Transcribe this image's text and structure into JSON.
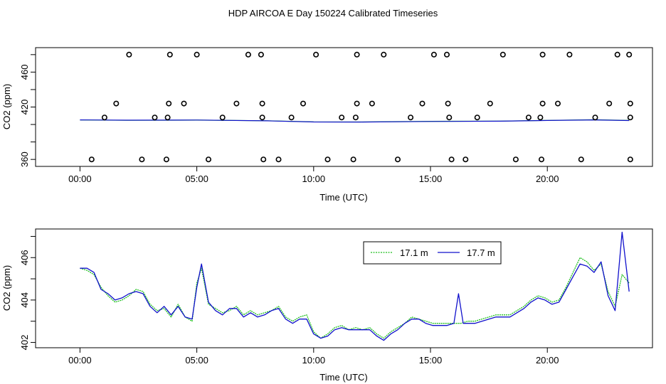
{
  "title": "HDP AIRCOA E  Day 150224  Calibrated Timeseries",
  "colors": {
    "green": "#1fbf1f",
    "blue": "#1010cc",
    "axis": "#000000"
  },
  "chart_data": [
    {
      "type": "scatter",
      "xlabel": "Time (UTC)",
      "ylabel": "CO2 (ppm)",
      "xlim": [
        -1.9,
        24.5
      ],
      "ylim": [
        352,
        488
      ],
      "xticks": [
        0,
        5,
        10,
        15,
        20
      ],
      "xtick_labels": [
        "00:00",
        "05:00",
        "10:00",
        "15:00",
        "20:00"
      ],
      "yticks": [
        360,
        380,
        400,
        420,
        440,
        460,
        480
      ],
      "ytick_labels": [
        "360",
        "",
        "",
        "420",
        "",
        "460",
        ""
      ],
      "calibration_points": {
        "high_480": [
          2.1,
          3.85,
          5.0,
          7.2,
          7.75,
          10.1,
          11.85,
          13.0,
          15.15,
          15.7,
          18.1,
          19.8,
          20.95,
          23.0,
          23.5
        ],
        "mid_424": [
          1.55,
          3.8,
          4.45,
          6.7,
          7.8,
          9.55,
          11.85,
          12.5,
          14.65,
          15.75,
          17.55,
          19.8,
          20.45,
          22.65,
          23.55
        ],
        "low_408": [
          1.05,
          3.2,
          3.75,
          6.1,
          7.8,
          9.05,
          11.2,
          11.8,
          14.15,
          15.8,
          17.0,
          19.2,
          19.7,
          22.05,
          23.55
        ],
        "std_360": [
          0.5,
          2.65,
          3.7,
          5.5,
          7.85,
          8.5,
          10.6,
          11.7,
          13.6,
          15.9,
          16.5,
          18.65,
          19.75,
          21.45,
          23.55
        ]
      },
      "series": [
        {
          "name": "17.1 m",
          "values": [
            [
              0,
              405.2
            ],
            [
              2,
              404.8
            ],
            [
              5,
              405.0
            ],
            [
              8,
              404.3
            ],
            [
              10,
              403.0
            ],
            [
              12,
              402.9
            ],
            [
              15,
              403.6
            ],
            [
              18,
              403.9
            ],
            [
              20,
              404.7
            ],
            [
              22,
              405.4
            ],
            [
              23.5,
              404.6
            ]
          ]
        },
        {
          "name": "17.7 m",
          "values": [
            [
              0,
              405.3
            ],
            [
              2,
              404.9
            ],
            [
              5,
              405.1
            ],
            [
              8,
              404.2
            ],
            [
              10,
              402.9
            ],
            [
              12,
              402.8
            ],
            [
              15,
              403.5
            ],
            [
              18,
              403.8
            ],
            [
              20,
              404.6
            ],
            [
              22,
              405.3
            ],
            [
              23.5,
              404.5
            ]
          ]
        }
      ]
    },
    {
      "type": "line",
      "xlabel": "Time (UTC)",
      "ylabel": "CO2 (ppm)",
      "xlim": [
        -1.9,
        24.5
      ],
      "ylim": [
        401.75,
        407.35
      ],
      "xticks": [
        0,
        5,
        10,
        15,
        20
      ],
      "xtick_labels": [
        "00:00",
        "05:00",
        "10:00",
        "15:00",
        "20:00"
      ],
      "yticks": [
        402,
        403,
        404,
        405,
        406,
        407
      ],
      "ytick_labels": [
        "402",
        "",
        "404",
        "",
        "406",
        ""
      ],
      "legend": {
        "position": "top-right",
        "entries": [
          "17.1 m",
          "17.7 m"
        ]
      },
      "series": [
        {
          "name": "17.1 m",
          "color": "#1fbf1f",
          "values": [
            [
              0.0,
              405.5
            ],
            [
              0.3,
              405.4
            ],
            [
              0.6,
              405.2
            ],
            [
              0.9,
              404.6
            ],
            [
              1.2,
              404.2
            ],
            [
              1.5,
              403.9
            ],
            [
              1.8,
              404.0
            ],
            [
              2.1,
              404.2
            ],
            [
              2.4,
              404.5
            ],
            [
              2.7,
              404.4
            ],
            [
              3.0,
              403.8
            ],
            [
              3.3,
              403.5
            ],
            [
              3.6,
              403.6
            ],
            [
              3.9,
              403.2
            ],
            [
              4.2,
              403.8
            ],
            [
              4.5,
              403.2
            ],
            [
              4.8,
              403.0
            ],
            [
              5.0,
              404.8
            ],
            [
              5.2,
              405.5
            ],
            [
              5.5,
              403.8
            ],
            [
              5.8,
              403.6
            ],
            [
              6.1,
              403.4
            ],
            [
              6.4,
              403.5
            ],
            [
              6.7,
              403.7
            ],
            [
              7.0,
              403.3
            ],
            [
              7.3,
              403.5
            ],
            [
              7.6,
              403.3
            ],
            [
              7.9,
              403.4
            ],
            [
              8.2,
              403.5
            ],
            [
              8.5,
              403.7
            ],
            [
              8.8,
              403.2
            ],
            [
              9.1,
              403.0
            ],
            [
              9.4,
              403.2
            ],
            [
              9.7,
              403.3
            ],
            [
              10.0,
              402.5
            ],
            [
              10.3,
              402.2
            ],
            [
              10.6,
              402.4
            ],
            [
              10.9,
              402.7
            ],
            [
              11.2,
              402.8
            ],
            [
              11.5,
              402.6
            ],
            [
              11.8,
              402.7
            ],
            [
              12.1,
              402.6
            ],
            [
              12.4,
              402.7
            ],
            [
              12.7,
              402.4
            ],
            [
              13.0,
              402.2
            ],
            [
              13.3,
              402.5
            ],
            [
              13.6,
              402.7
            ],
            [
              13.9,
              402.9
            ],
            [
              14.2,
              403.2
            ],
            [
              14.5,
              403.1
            ],
            [
              14.8,
              403.0
            ],
            [
              15.1,
              402.9
            ],
            [
              15.4,
              402.9
            ],
            [
              15.7,
              402.9
            ],
            [
              16.0,
              402.9
            ],
            [
              16.3,
              402.9
            ],
            [
              16.6,
              403.0
            ],
            [
              16.9,
              403.0
            ],
            [
              17.2,
              403.1
            ],
            [
              17.5,
              403.2
            ],
            [
              17.8,
              403.3
            ],
            [
              18.1,
              403.3
            ],
            [
              18.4,
              403.3
            ],
            [
              18.7,
              403.5
            ],
            [
              19.0,
              403.7
            ],
            [
              19.3,
              404.0
            ],
            [
              19.6,
              404.2
            ],
            [
              19.9,
              404.1
            ],
            [
              20.2,
              403.9
            ],
            [
              20.5,
              404.0
            ],
            [
              20.8,
              404.6
            ],
            [
              21.1,
              405.3
            ],
            [
              21.4,
              406.0
            ],
            [
              21.7,
              405.8
            ],
            [
              22.0,
              405.4
            ],
            [
              22.3,
              405.7
            ],
            [
              22.6,
              404.4
            ],
            [
              22.9,
              403.7
            ],
            [
              23.2,
              405.2
            ],
            [
              23.5,
              404.8
            ]
          ]
        },
        {
          "name": "17.7 m",
          "color": "#1010cc",
          "values": [
            [
              0.0,
              405.5
            ],
            [
              0.3,
              405.5
            ],
            [
              0.6,
              405.3
            ],
            [
              0.9,
              404.5
            ],
            [
              1.2,
              404.3
            ],
            [
              1.5,
              404.0
            ],
            [
              1.8,
              404.1
            ],
            [
              2.1,
              404.3
            ],
            [
              2.4,
              404.4
            ],
            [
              2.7,
              404.3
            ],
            [
              3.0,
              403.7
            ],
            [
              3.3,
              403.4
            ],
            [
              3.6,
              403.7
            ],
            [
              3.9,
              403.3
            ],
            [
              4.2,
              403.7
            ],
            [
              4.5,
              403.2
            ],
            [
              4.8,
              403.1
            ],
            [
              5.0,
              404.6
            ],
            [
              5.2,
              405.7
            ],
            [
              5.5,
              403.9
            ],
            [
              5.8,
              403.5
            ],
            [
              6.1,
              403.3
            ],
            [
              6.4,
              403.6
            ],
            [
              6.7,
              403.6
            ],
            [
              7.0,
              403.2
            ],
            [
              7.3,
              403.4
            ],
            [
              7.6,
              403.2
            ],
            [
              7.9,
              403.3
            ],
            [
              8.2,
              403.5
            ],
            [
              8.5,
              403.6
            ],
            [
              8.8,
              403.1
            ],
            [
              9.1,
              402.9
            ],
            [
              9.4,
              403.1
            ],
            [
              9.7,
              403.1
            ],
            [
              10.0,
              402.4
            ],
            [
              10.3,
              402.2
            ],
            [
              10.6,
              402.3
            ],
            [
              10.9,
              402.6
            ],
            [
              11.2,
              402.7
            ],
            [
              11.5,
              402.6
            ],
            [
              11.8,
              402.6
            ],
            [
              12.1,
              402.6
            ],
            [
              12.4,
              402.6
            ],
            [
              12.7,
              402.3
            ],
            [
              13.0,
              402.1
            ],
            [
              13.3,
              402.4
            ],
            [
              13.6,
              402.6
            ],
            [
              13.9,
              402.9
            ],
            [
              14.2,
              403.1
            ],
            [
              14.5,
              403.1
            ],
            [
              14.8,
              402.9
            ],
            [
              15.1,
              402.8
            ],
            [
              15.4,
              402.8
            ],
            [
              15.7,
              402.8
            ],
            [
              16.0,
              402.9
            ],
            [
              16.2,
              404.3
            ],
            [
              16.4,
              402.9
            ],
            [
              16.6,
              402.9
            ],
            [
              16.9,
              402.9
            ],
            [
              17.2,
              403.0
            ],
            [
              17.5,
              403.1
            ],
            [
              17.8,
              403.2
            ],
            [
              18.1,
              403.2
            ],
            [
              18.4,
              403.2
            ],
            [
              18.7,
              403.4
            ],
            [
              19.0,
              403.6
            ],
            [
              19.3,
              403.9
            ],
            [
              19.6,
              404.1
            ],
            [
              19.9,
              404.0
            ],
            [
              20.2,
              403.8
            ],
            [
              20.5,
              403.9
            ],
            [
              20.8,
              404.5
            ],
            [
              21.1,
              405.1
            ],
            [
              21.4,
              405.7
            ],
            [
              21.7,
              405.6
            ],
            [
              22.0,
              405.3
            ],
            [
              22.3,
              405.8
            ],
            [
              22.6,
              404.2
            ],
            [
              22.9,
              403.5
            ],
            [
              23.2,
              407.2
            ],
            [
              23.5,
              404.4
            ]
          ]
        }
      ]
    }
  ]
}
